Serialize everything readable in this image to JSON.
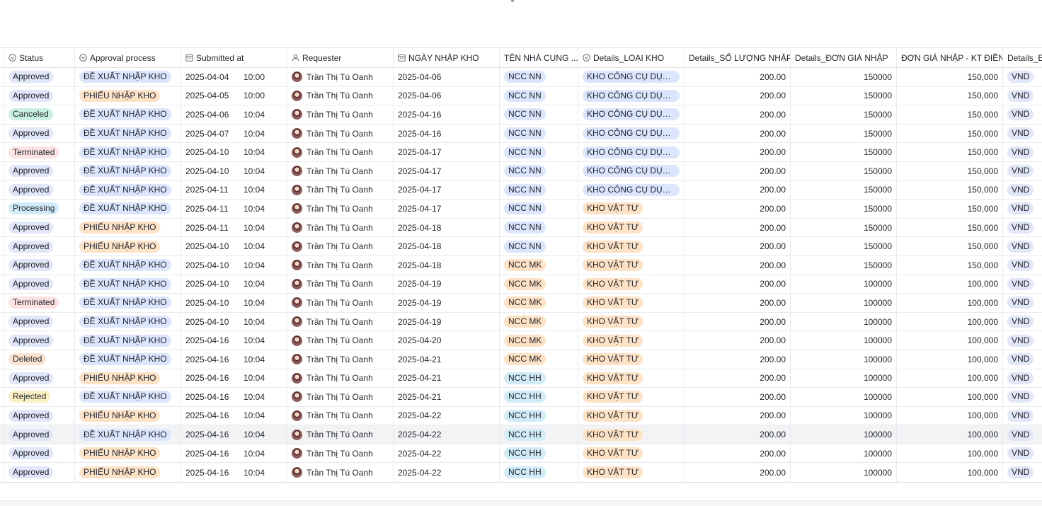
{
  "columns": [
    {
      "label": "Status",
      "icon": "single-select-icon"
    },
    {
      "label": "Approval process",
      "icon": "single-select-icon"
    },
    {
      "label": "Submitted at",
      "icon": "calendar-icon"
    },
    {
      "label": "Requester",
      "icon": "person-icon"
    },
    {
      "label": "NGÀY NHẬP KHO",
      "icon": "calendar-icon"
    },
    {
      "label": "TÊN NHÀ CUNG ...",
      "icon": ""
    },
    {
      "label": "Details_LOẠI KHO",
      "icon": "single-select-icon"
    },
    {
      "label": "Details_SỐ LƯỢNG NHẬP",
      "icon": ""
    },
    {
      "label": "Details_ĐƠN GIÁ NHẬP",
      "icon": ""
    },
    {
      "label": "ĐƠN GIÁ NHẬP - KT ĐIỀN",
      "icon": ""
    },
    {
      "label": "Details_E",
      "icon": ""
    }
  ],
  "colors": {
    "Approved": "#dbe5fb",
    "Canceled": "#c9efe2",
    "Terminated": "#fde2e2",
    "Processing": "#d1ebf7",
    "Deleted": "#fbe5d2",
    "Rejected": "#fbf0c3",
    "ĐỀ XUẤT NHẬP KHO": "#dbe5fb",
    "PHIẾU NHẬP KHO": "#fde2c6",
    "NCC NN": "#dbe5fb",
    "NCC MK": "#fde2c6",
    "NCC HH": "#d1ebf7",
    "KHO CÔNG CỤ DỤNG...": "#dbe5fb",
    "KHO VẬT TƯ": "#fde2c6"
  },
  "rows": [
    {
      "status": "Approved",
      "process": "ĐỀ XUẤT NHẬP KHO",
      "date": "2025-04-04",
      "time": "10:00",
      "requester": "Trần Thị Tú Oanh",
      "ngay": "2025-04-06",
      "ncc": "NCC NN",
      "loai": "KHO CÔNG CỤ DỤNG...",
      "sl": "200.00",
      "dg": "150000",
      "kt": "150,000",
      "cur": "VND"
    },
    {
      "status": "Approved",
      "process": "PHIẾU NHẬP KHO",
      "date": "2025-04-05",
      "time": "10:00",
      "requester": "Trần Thị Tú Oanh",
      "ngay": "2025-04-06",
      "ncc": "NCC NN",
      "loai": "KHO CÔNG CỤ DỤNG...",
      "sl": "200.00",
      "dg": "150000",
      "kt": "150,000",
      "cur": "VND"
    },
    {
      "status": "Canceled",
      "process": "ĐỀ XUẤT NHẬP KHO",
      "date": "2025-04-06",
      "time": "10:04",
      "requester": "Trần Thị Tú Oanh",
      "ngay": "2025-04-16",
      "ncc": "NCC NN",
      "loai": "KHO CÔNG CỤ DỤNG...",
      "sl": "200.00",
      "dg": "150000",
      "kt": "150,000",
      "cur": "VND"
    },
    {
      "status": "Approved",
      "process": "ĐỀ XUẤT NHẬP KHO",
      "date": "2025-04-07",
      "time": "10:04",
      "requester": "Trần Thị Tú Oanh",
      "ngay": "2025-04-16",
      "ncc": "NCC NN",
      "loai": "KHO CÔNG CỤ DỤNG...",
      "sl": "200.00",
      "dg": "150000",
      "kt": "150,000",
      "cur": "VND"
    },
    {
      "status": "Terminated",
      "process": "ĐỀ XUẤT NHẬP KHO",
      "date": "2025-04-10",
      "time": "10:04",
      "requester": "Trần Thị Tú Oanh",
      "ngay": "2025-04-17",
      "ncc": "NCC NN",
      "loai": "KHO CÔNG CỤ DỤNG...",
      "sl": "200.00",
      "dg": "150000",
      "kt": "150,000",
      "cur": "VND"
    },
    {
      "status": "Approved",
      "process": "ĐỀ XUẤT NHẬP KHO",
      "date": "2025-04-10",
      "time": "10:04",
      "requester": "Trần Thị Tú Oanh",
      "ngay": "2025-04-17",
      "ncc": "NCC NN",
      "loai": "KHO CÔNG CỤ DỤNG...",
      "sl": "200.00",
      "dg": "150000",
      "kt": "150,000",
      "cur": "VND"
    },
    {
      "status": "Approved",
      "process": "ĐỀ XUẤT NHẬP KHO",
      "date": "2025-04-11",
      "time": "10:04",
      "requester": "Trần Thị Tú Oanh",
      "ngay": "2025-04-17",
      "ncc": "NCC NN",
      "loai": "KHO CÔNG CỤ DỤNG...",
      "sl": "200.00",
      "dg": "150000",
      "kt": "150,000",
      "cur": "VND"
    },
    {
      "status": "Processing",
      "process": "ĐỀ XUẤT NHẬP KHO",
      "date": "2025-04-11",
      "time": "10:04",
      "requester": "Trần Thị Tú Oanh",
      "ngay": "2025-04-17",
      "ncc": "NCC NN",
      "loai": "KHO VẬT TƯ",
      "sl": "200.00",
      "dg": "150000",
      "kt": "150,000",
      "cur": "VND"
    },
    {
      "status": "Approved",
      "process": "PHIẾU NHẬP KHO",
      "date": "2025-04-11",
      "time": "10:04",
      "requester": "Trần Thị Tú Oanh",
      "ngay": "2025-04-18",
      "ncc": "NCC NN",
      "loai": "KHO VẬT TƯ",
      "sl": "200.00",
      "dg": "150000",
      "kt": "150,000",
      "cur": "VND"
    },
    {
      "status": "Approved",
      "process": "PHIẾU NHẬP KHO",
      "date": "2025-04-10",
      "time": "10:04",
      "requester": "Trần Thị Tú Oanh",
      "ngay": "2025-04-18",
      "ncc": "NCC NN",
      "loai": "KHO VẬT TƯ",
      "sl": "200.00",
      "dg": "150000",
      "kt": "150,000",
      "cur": "VND"
    },
    {
      "status": "Approved",
      "process": "ĐỀ XUẤT NHẬP KHO",
      "date": "2025-04-10",
      "time": "10:04",
      "requester": "Trần Thị Tú Oanh",
      "ngay": "2025-04-18",
      "ncc": "NCC MK",
      "loai": "KHO VẬT TƯ",
      "sl": "200.00",
      "dg": "150000",
      "kt": "150,000",
      "cur": "VND"
    },
    {
      "status": "Approved",
      "process": "ĐỀ XUẤT NHẬP KHO",
      "date": "2025-04-10",
      "time": "10:04",
      "requester": "Trần Thị Tú Oanh",
      "ngay": "2025-04-19",
      "ncc": "NCC MK",
      "loai": "KHO VẬT TƯ",
      "sl": "200.00",
      "dg": "100000",
      "kt": "100,000",
      "cur": "VND"
    },
    {
      "status": "Terminated",
      "process": "ĐỀ XUẤT NHẬP KHO",
      "date": "2025-04-10",
      "time": "10:04",
      "requester": "Trần Thị Tú Oanh",
      "ngay": "2025-04-19",
      "ncc": "NCC MK",
      "loai": "KHO VẬT TƯ",
      "sl": "200.00",
      "dg": "100000",
      "kt": "100,000",
      "cur": "VND"
    },
    {
      "status": "Approved",
      "process": "ĐỀ XUẤT NHẬP KHO",
      "date": "2025-04-10",
      "time": "10:04",
      "requester": "Trần Thị Tú Oanh",
      "ngay": "2025-04-19",
      "ncc": "NCC MK",
      "loai": "KHO VẬT TƯ",
      "sl": "200.00",
      "dg": "100000",
      "kt": "100,000",
      "cur": "VND"
    },
    {
      "status": "Approved",
      "process": "ĐỀ XUẤT NHẬP KHO",
      "date": "2025-04-16",
      "time": "10:04",
      "requester": "Trần Thị Tú Oanh",
      "ngay": "2025-04-20",
      "ncc": "NCC MK",
      "loai": "KHO VẬT TƯ",
      "sl": "200.00",
      "dg": "100000",
      "kt": "100,000",
      "cur": "VND"
    },
    {
      "status": "Deleted",
      "process": "ĐỀ XUẤT NHẬP KHO",
      "date": "2025-04-16",
      "time": "10:04",
      "requester": "Trần Thị Tú Oanh",
      "ngay": "2025-04-21",
      "ncc": "NCC MK",
      "loai": "KHO VẬT TƯ",
      "sl": "200.00",
      "dg": "100000",
      "kt": "100,000",
      "cur": "VND"
    },
    {
      "status": "Approved",
      "process": "PHIẾU NHẬP KHO",
      "date": "2025-04-16",
      "time": "10:04",
      "requester": "Trần Thị Tú Oanh",
      "ngay": "2025-04-21",
      "ncc": "NCC HH",
      "loai": "KHO VẬT TƯ",
      "sl": "200.00",
      "dg": "100000",
      "kt": "100,000",
      "cur": "VND"
    },
    {
      "status": "Rejected",
      "process": "ĐỀ XUẤT NHẬP KHO",
      "date": "2025-04-16",
      "time": "10:04",
      "requester": "Trần Thị Tú Oanh",
      "ngay": "2025-04-21",
      "ncc": "NCC HH",
      "loai": "KHO VẬT TƯ",
      "sl": "200.00",
      "dg": "100000",
      "kt": "100,000",
      "cur": "VND"
    },
    {
      "status": "Approved",
      "process": "PHIẾU NHẬP KHO",
      "date": "2025-04-16",
      "time": "10:04",
      "requester": "Trần Thị Tú Oanh",
      "ngay": "2025-04-22",
      "ncc": "NCC HH",
      "loai": "KHO VẬT TƯ",
      "sl": "200.00",
      "dg": "100000",
      "kt": "100,000",
      "cur": "VND"
    },
    {
      "status": "Approved",
      "process": "ĐỀ XUẤT NHẬP KHO",
      "date": "2025-04-16",
      "time": "10:04",
      "requester": "Trần Thị Tú Oanh",
      "ngay": "2025-04-22",
      "ncc": "NCC HH",
      "loai": "KHO VẬT TƯ",
      "sl": "200.00",
      "dg": "100000",
      "kt": "100,000",
      "cur": "VND"
    },
    {
      "status": "Approved",
      "process": "PHIẾU NHẬP KHO",
      "date": "2025-04-16",
      "time": "10:04",
      "requester": "Trần Thị Tú Oanh",
      "ngay": "2025-04-22",
      "ncc": "NCC HH",
      "loai": "KHO VẬT TƯ",
      "sl": "200.00",
      "dg": "100000",
      "kt": "100,000",
      "cur": "VND"
    },
    {
      "status": "Approved",
      "process": "PHIẾU NHẬP KHO",
      "date": "2025-04-16",
      "time": "10:04",
      "requester": "Trần Thị Tú Oanh",
      "ngay": "2025-04-22",
      "ncc": "NCC HH",
      "loai": "KHO VẬT TƯ",
      "sl": "200.00",
      "dg": "100000",
      "kt": "100,000",
      "cur": "VND"
    }
  ]
}
